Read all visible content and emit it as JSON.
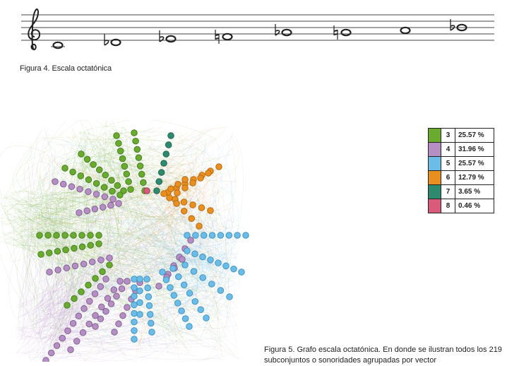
{
  "figure4": {
    "caption": "Figura 4. Escala octatónica",
    "notes": [
      {
        "accidental": ""
      },
      {
        "accidental": "flat"
      },
      {
        "accidental": "flat"
      },
      {
        "accidental": "natural"
      },
      {
        "accidental": "flat"
      },
      {
        "accidental": "natural"
      },
      {
        "accidental": ""
      },
      {
        "accidental": "flat"
      }
    ]
  },
  "figure5": {
    "caption": "Figura 5. Grafo escala octatónica. En donde se ilustran todos los 219 subconjuntos o sonoridades agrupadas por vector",
    "legend": [
      {
        "value": "3",
        "percent": "25.57 %",
        "color": "#6aab2f"
      },
      {
        "value": "4",
        "percent": "31.96 %",
        "color": "#b58fc4"
      },
      {
        "value": "5",
        "percent": "25.57 %",
        "color": "#6bbde8"
      },
      {
        "value": "6",
        "percent": "12.79 %",
        "color": "#e88f1f"
      },
      {
        "value": "7",
        "percent": "3.65 %",
        "color": "#2e8a6e"
      },
      {
        "value": "8",
        "percent": "0.46 %",
        "color": "#d95a7a"
      }
    ]
  }
}
